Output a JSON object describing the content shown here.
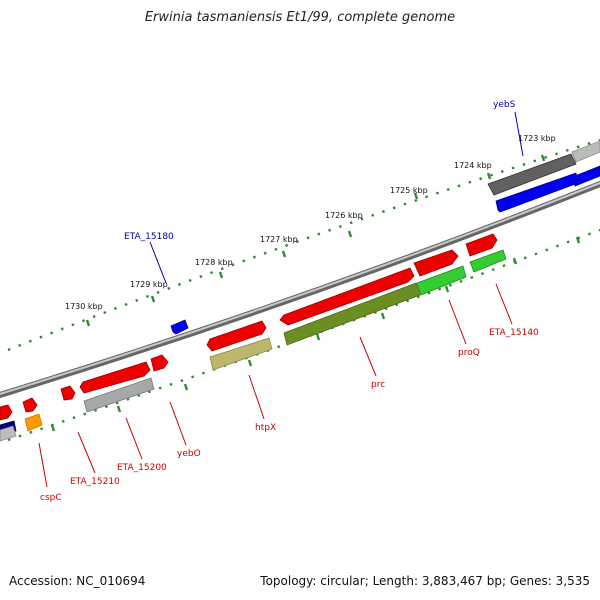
{
  "title": "Erwinia tasmaniensis Et1/99, complete genome",
  "footer": {
    "accession_label": "Accession:",
    "accession": "NC_010694",
    "topology_label": "Topology:",
    "topology": "circular",
    "length_label": "Length:",
    "length": "3,883,467 bp",
    "genes_label": "Genes:",
    "genes": "3,535"
  },
  "scale": {
    "unit": "kbp",
    "ticks": [
      "1723 kbp",
      "1724 kbp",
      "1725 kbp",
      "1726 kbp",
      "1727 kbp",
      "1728 kbp",
      "1729 kbp",
      "1730 kbp"
    ]
  },
  "colors": {
    "backbone": "#8c8c8c",
    "ruler": "#2e8b2e",
    "forward_strand": "#ee0000",
    "reverse_strand": "#0000ee",
    "label_forward": "#cc0000",
    "label_reverse": "#0000aa",
    "cog_gray": "#a8a8a8",
    "cog_dark_gray": "#606060",
    "cog_olive": "#6b8e23",
    "cog_khaki": "#bdb76b",
    "cog_green": "#33cc33",
    "cog_orange": "#ff9900",
    "cog_blue": "#0000ee",
    "cog_navy": "#000080"
  },
  "genes": [
    {
      "name": "yebS",
      "strand": "reverse"
    },
    {
      "name": "ETA_15180",
      "strand": "reverse"
    },
    {
      "name": "ETA_15140",
      "strand": "forward"
    },
    {
      "name": "proQ",
      "strand": "forward"
    },
    {
      "name": "prc",
      "strand": "forward"
    },
    {
      "name": "htpX",
      "strand": "forward"
    },
    {
      "name": "yebO",
      "strand": "forward"
    },
    {
      "name": "ETA_15200",
      "strand": "forward"
    },
    {
      "name": "ETA_15210",
      "strand": "forward"
    },
    {
      "name": "cspC",
      "strand": "forward"
    }
  ]
}
